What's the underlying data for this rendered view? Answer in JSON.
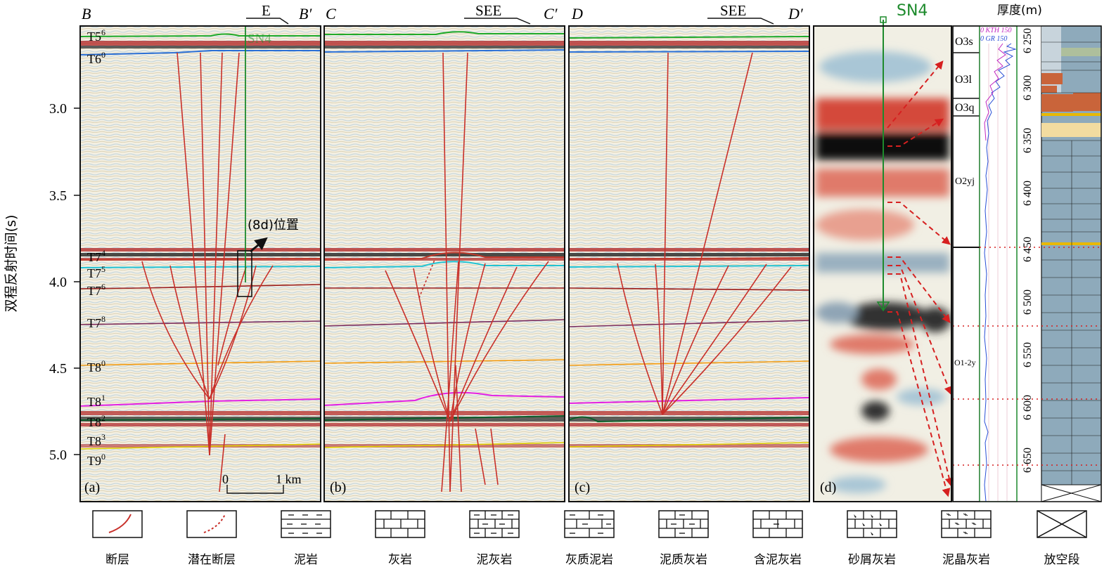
{
  "axis": {
    "ylabel": "双程反射时间(s)",
    "ticks": [
      "3.0",
      "3.5",
      "4.0",
      "4.5",
      "5.0"
    ]
  },
  "panels": [
    {
      "id": "a",
      "tag": "(a)",
      "left": "B",
      "right": "B′",
      "dir": "E"
    },
    {
      "id": "b",
      "tag": "(b)",
      "left": "C",
      "right": "C′",
      "dir": "SEE"
    },
    {
      "id": "c",
      "tag": "(c)",
      "left": "D",
      "right": "D′",
      "dir": "SEE"
    },
    {
      "id": "d",
      "tag": "(d)"
    }
  ],
  "horizons": [
    {
      "label": "T5",
      "sup": "6",
      "color": "#1faa2a"
    },
    {
      "label": "T6",
      "sup": "0",
      "color": "#2a6fd6"
    },
    {
      "label": "T7",
      "sup": "4",
      "color": "#c0392b"
    },
    {
      "label": "T7",
      "sup": "5",
      "color": "#22c3d3"
    },
    {
      "label": "T7",
      "sup": "6",
      "color": "#9b1c1c"
    },
    {
      "label": "T7",
      "sup": "8",
      "color": "#7b2d5e"
    },
    {
      "label": "T8",
      "sup": "0",
      "color": "#f39c12"
    },
    {
      "label": "T8",
      "sup": "1",
      "color": "#e320e3"
    },
    {
      "label": "T8",
      "sup": "2",
      "color": "#0b5e2a"
    },
    {
      "label": "T8",
      "sup": "3",
      "color": "#e0d000"
    },
    {
      "label": "T9",
      "sup": "0",
      "color": "#c0392b"
    }
  ],
  "annotations": {
    "well_a": "SN4",
    "box_label": "(8d)位置",
    "scale": {
      "zero": "0",
      "one": "1 km"
    }
  },
  "well_panel": {
    "well": "SN4",
    "thickness_title": "厚度(m)",
    "log_top": "0 KTH 150",
    "log_bottom": "0 GR 150",
    "log_top_name": "KTH",
    "log_bottom_name": "GR",
    "log_min": "0",
    "log_max": "150",
    "formations": [
      "O3s",
      "O3l",
      "O3q",
      "O2yj",
      "O1-2y"
    ],
    "depths": [
      "6 250",
      "6 300",
      "6 350",
      "6 400",
      "6 450",
      "6 500",
      "6 550",
      "6 600",
      "6 650"
    ]
  },
  "legend": [
    "断层",
    "潜在断层",
    "泥岩",
    "灰岩",
    "泥灰岩",
    "灰质泥岩",
    "泥质灰岩",
    "含泥灰岩",
    "砂屑灰岩",
    "泥晶灰岩",
    "放空段"
  ]
}
